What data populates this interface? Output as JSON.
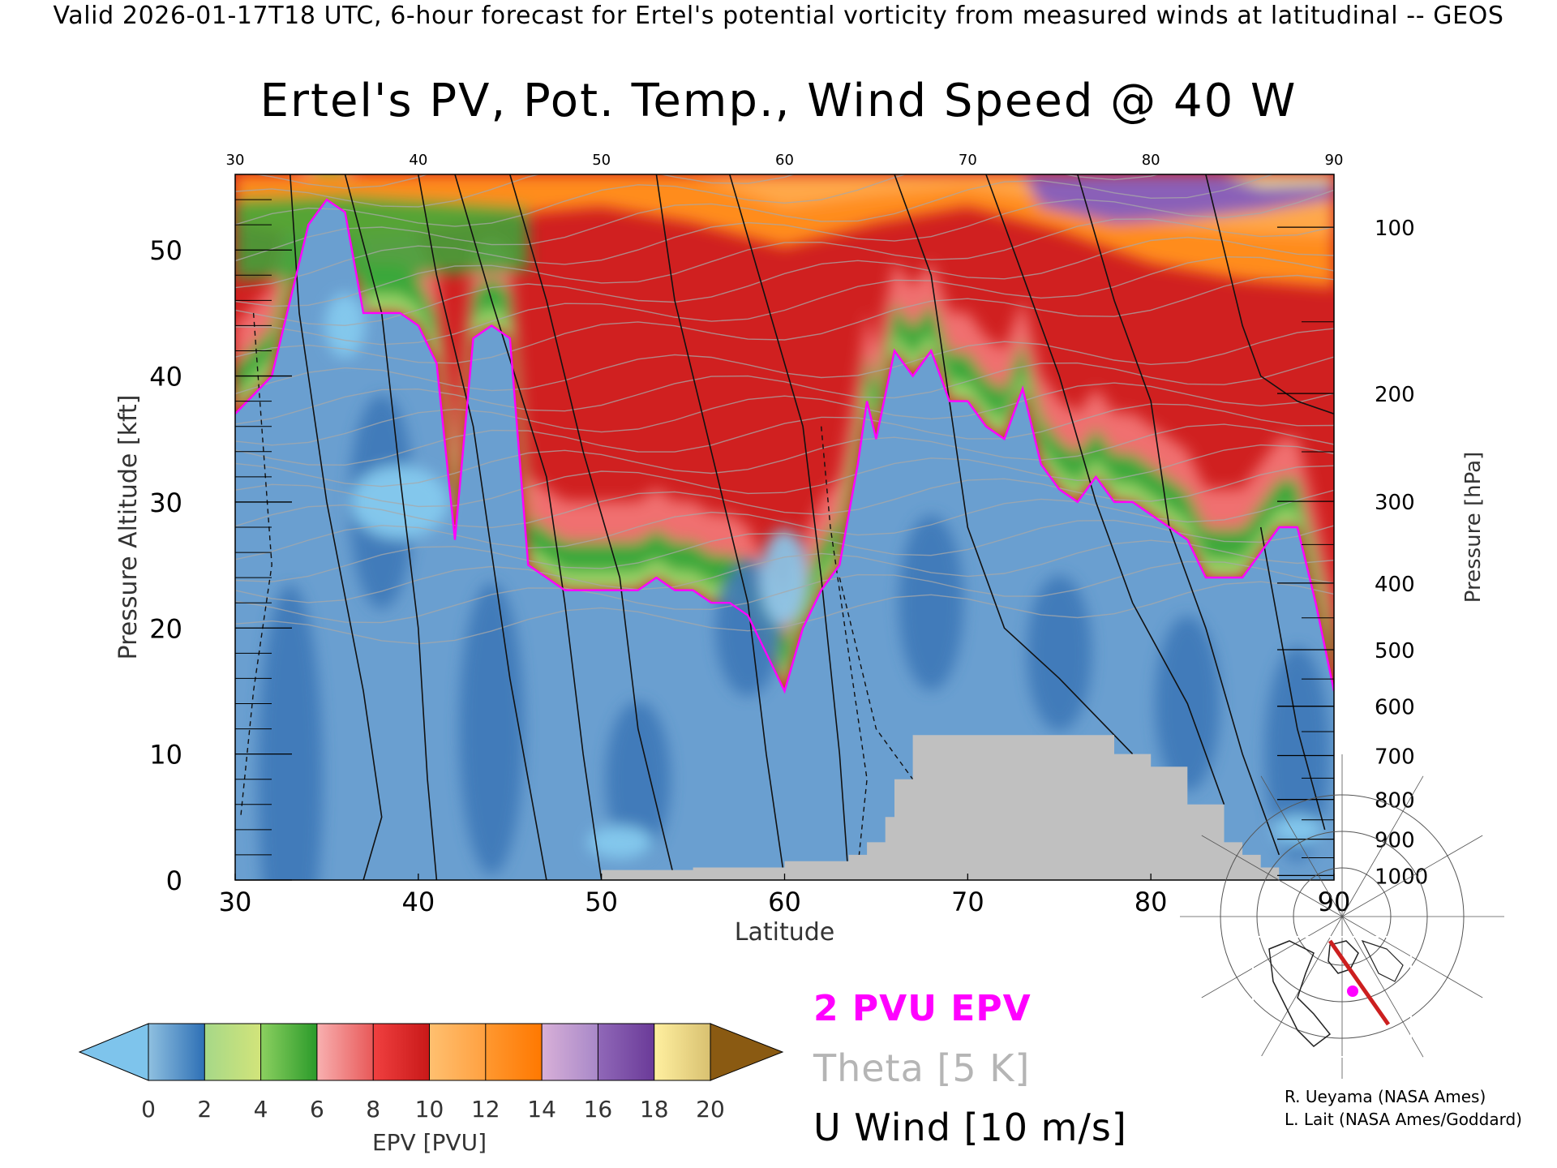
{
  "header": {
    "valid_line": "Valid 2026-01-17T18 UTC, 6-hour forecast for Ertel's potential vorticity from measured winds at latitudinal -- GEOS",
    "title": "Ertel's PV, Pot. Temp., Wind Speed @ 40 W"
  },
  "chart_data": {
    "type": "heatmap",
    "title": "Ertel's PV, Pot. Temp., Wind Speed @ 40 W",
    "x": {
      "label": "Latitude",
      "range": [
        30,
        90
      ],
      "ticks": [
        30,
        40,
        50,
        60,
        70,
        80,
        90
      ],
      "top_ticks": [
        30,
        40,
        50,
        60,
        70,
        80,
        90
      ]
    },
    "y_left": {
      "label": "Pressure Altitude [kft]",
      "range": [
        0,
        56
      ],
      "ticks": [
        0,
        10,
        20,
        30,
        40,
        50
      ]
    },
    "y_right": {
      "label": "Pressure [hPa]",
      "ticks": [
        100,
        200,
        300,
        400,
        500,
        600,
        700,
        800,
        900,
        1000
      ]
    },
    "colorbar": {
      "label": "EPV [PVU]",
      "ticks": [
        "0",
        "2",
        "4",
        "6",
        "8",
        "10",
        "12",
        "14",
        "16",
        "18",
        "20"
      ],
      "under_color": "#7ec4ec",
      "over_color": "#8a5a12",
      "stops": [
        [
          "#8fc0e0",
          "#2d6fb5"
        ],
        [
          "#a6d888",
          "#d2e47a"
        ],
        [
          "#8cd060",
          "#2a9a2a"
        ],
        [
          "#f8b0b0",
          "#e85858"
        ],
        [
          "#f04040",
          "#c81818"
        ],
        [
          "#ffc070",
          "#ffa040"
        ],
        [
          "#ff9830",
          "#ff7800"
        ],
        [
          "#d8b0d8",
          "#a888c8"
        ],
        [
          "#9068b8",
          "#6a3a98"
        ],
        [
          "#fff0a0",
          "#d8c070"
        ]
      ]
    },
    "series": [
      {
        "name": "2 PVU EPV",
        "color": "#ff00ff",
        "x": [
          30,
          32,
          33,
          34,
          35,
          36,
          37,
          38,
          39,
          40,
          41,
          42,
          43,
          44,
          45,
          46,
          47,
          48,
          49,
          50,
          51,
          52,
          53,
          54,
          55,
          56,
          57,
          58,
          59,
          60,
          61,
          62,
          63,
          64,
          64.5,
          65,
          66,
          67,
          68,
          69,
          70,
          71,
          72,
          73,
          74,
          75,
          76,
          77,
          78,
          79,
          80,
          81,
          82,
          83,
          84,
          85,
          86,
          87,
          88,
          89,
          90
        ],
        "y": [
          37,
          40,
          46,
          52,
          54,
          53,
          45,
          45,
          45,
          44,
          41,
          27,
          43,
          44,
          43,
          25,
          24,
          23,
          23,
          23,
          23,
          23,
          24,
          23,
          23,
          22,
          22,
          21,
          18,
          15,
          20,
          23,
          25,
          33,
          38,
          35,
          42,
          40,
          42,
          38,
          38,
          36,
          35,
          39,
          33,
          31,
          30,
          32,
          30,
          30,
          29,
          28,
          27,
          24,
          24,
          24,
          26,
          28,
          28,
          22,
          15
        ]
      }
    ],
    "terrain": {
      "color": "#c0c0c0",
      "x": [
        50,
        55,
        60,
        63.5,
        64.5,
        65.5,
        66,
        67,
        70,
        73,
        76,
        78,
        80,
        82,
        84,
        85,
        86
      ],
      "y": [
        0.8,
        1.0,
        1.5,
        2.0,
        3.0,
        5.0,
        8.0,
        11.5,
        11.5,
        11.5,
        11.5,
        10.0,
        9.0,
        6.0,
        3.0,
        2.0,
        1.0
      ]
    }
  },
  "legend_text": {
    "epv": "2 PVU EPV",
    "theta": "Theta [5 K]",
    "uwind": "U Wind [10 m/s]"
  },
  "inset_map": {
    "track_color": "#cc1f1f",
    "marker_color": "#ff00ff"
  },
  "credits": {
    "line1": "R. Ueyama (NASA Ames)",
    "line2": "L. Lait (NASA Ames/Goddard)"
  }
}
